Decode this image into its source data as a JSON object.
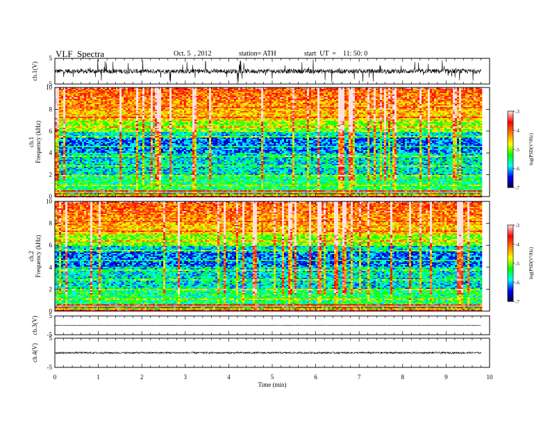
{
  "header": {
    "title": "VLF  Spectra",
    "date": "Oct. 5  , 2012",
    "station": "station= ATH",
    "start": "start  UT  =    11: 50: 0"
  },
  "chart_data": {
    "type": "heatmap",
    "xlabel": "Time  (min)",
    "xlim": [
      0,
      10
    ],
    "x_ticks": [
      "0",
      "1",
      "2",
      "3",
      "4",
      "5",
      "6",
      "7",
      "8",
      "9",
      "10"
    ],
    "data_end_min": 9.8,
    "panels": [
      {
        "kind": "waveform",
        "ylabel": "ch.1(V)",
        "ylim": [
          -5,
          5
        ],
        "y_ticks": [
          "5",
          "-5"
        ],
        "amplitude_volts": 1.8
      },
      {
        "kind": "spectrogram",
        "ylabel": [
          "ch.1",
          "Frequency  (kHz)"
        ],
        "ylim": [
          0,
          10
        ],
        "y_ticks": [
          "0",
          "2",
          "4",
          "6",
          "8",
          "10"
        ],
        "colorbar": {
          "label": "log(PSD(V²/Hz)",
          "range": [
            -7,
            -3
          ],
          "ticks": [
            "-3",
            "-4",
            "-5",
            "-6",
            "-7"
          ],
          "colors": [
            "#000040",
            "#0000ff",
            "#00ffff",
            "#00ff00",
            "#ffff00",
            "#ff8000",
            "#ff0000",
            "#ffe0e0"
          ]
        }
      },
      {
        "kind": "spectrogram",
        "ylabel": [
          "ch.2",
          "Frequency  (kHz)"
        ],
        "ylim": [
          0,
          10
        ],
        "y_ticks": [
          "0",
          "2",
          "4",
          "6",
          "8",
          "10"
        ],
        "colorbar": {
          "label": "log(PSD(V²/Hz)",
          "range": [
            -7,
            -3
          ],
          "ticks": [
            "-3",
            "-4",
            "-5",
            "-6",
            "-7"
          ],
          "colors": [
            "#000040",
            "#0000ff",
            "#00ffff",
            "#00ff00",
            "#ffff00",
            "#ff8000",
            "#ff0000",
            "#ffe0e0"
          ]
        }
      },
      {
        "kind": "waveform",
        "ylabel": "ch.3(V)",
        "ylim": [
          -5,
          5
        ],
        "y_ticks": [
          "5",
          "-5"
        ],
        "amplitude_volts": 0.15
      },
      {
        "kind": "waveform",
        "ylabel": "ch.4(V)",
        "ylim": [
          -5,
          5
        ],
        "y_ticks": [
          "5",
          "-5"
        ],
        "amplitude_volts": 0.6
      }
    ]
  }
}
